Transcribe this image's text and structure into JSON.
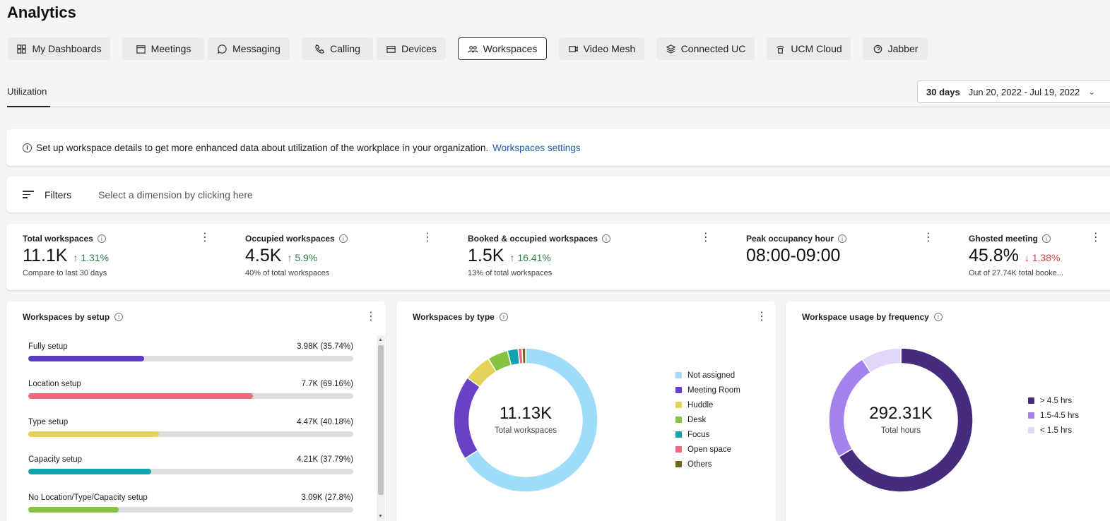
{
  "page_title": "Analytics",
  "nav_tabs": [
    {
      "label": "My Dashboards",
      "icon": "dashboard-icon"
    },
    {
      "label": "Meetings",
      "icon": "calendar-icon"
    },
    {
      "label": "Messaging",
      "icon": "chat-bubble-icon"
    },
    {
      "label": "Calling",
      "icon": "phone-icon"
    },
    {
      "label": "Devices",
      "icon": "device-icon"
    },
    {
      "label": "Workspaces",
      "icon": "people-icon",
      "active": true
    },
    {
      "label": "Video Mesh",
      "icon": "video-mesh-icon"
    },
    {
      "label": "Connected UC",
      "icon": "layers-icon"
    },
    {
      "label": "UCM Cloud",
      "icon": "cloud-phone-icon"
    },
    {
      "label": "Jabber",
      "icon": "jabber-icon"
    }
  ],
  "subtab": "Utilization",
  "date_range": {
    "days": "30 days",
    "range": "Jun 20, 2022 - Jul 19, 2022"
  },
  "banner": {
    "text": "Set up workspace details to get more enhanced data about utilization of the workplace in your organization.",
    "link": "Workspaces settings"
  },
  "filters": {
    "label": "Filters",
    "hint": "Select a dimension by clicking here"
  },
  "kpis": [
    {
      "title": "Total workspaces",
      "value": "11.1K",
      "delta": "↑ 1.31%",
      "dir": "up",
      "sub": "Compare to last 30 days"
    },
    {
      "title": "Occupied workspaces",
      "value": "4.5K",
      "delta": "↑ 5.9%",
      "dir": "up",
      "sub": "40% of total workspaces"
    },
    {
      "title": "Booked & occupied workspaces",
      "value": "1.5K",
      "delta": "↑ 16.41%",
      "dir": "up",
      "sub": "13% of total workspaces"
    },
    {
      "title": "Peak occupancy hour",
      "value": "08:00-09:00",
      "delta": "",
      "dir": "",
      "sub": ""
    },
    {
      "title": "Ghosted meeting",
      "value": "45.8%",
      "delta": "↓ 1.38%",
      "dir": "down",
      "sub": "Out of 27.74K total booke..."
    }
  ],
  "setup_card": {
    "title": "Workspaces by setup",
    "rows": [
      {
        "label": "Fully setup",
        "value": "3.98K (35.74%)",
        "pct": 35.74,
        "color": "#5b3ec0"
      },
      {
        "label": "Location setup",
        "value": "7.7K (69.16%)",
        "pct": 69.16,
        "color": "#ec6a80"
      },
      {
        "label": "Type setup",
        "value": "4.47K (40.18%)",
        "pct": 40.18,
        "color": "#e5d25a"
      },
      {
        "label": "Capacity setup",
        "value": "4.21K (37.79%)",
        "pct": 37.79,
        "color": "#12a3ad"
      },
      {
        "label": "No Location/Type/Capacity setup",
        "value": "3.09K (27.8%)",
        "pct": 27.8,
        "color": "#82c341"
      }
    ]
  },
  "type_card": {
    "title": "Workspaces by type",
    "center_value": "11.13K",
    "center_label": "Total workspaces"
  },
  "freq_card": {
    "title": "Workspace usage by frequency",
    "center_value": "292.31K",
    "center_label": "Total hours"
  },
  "chart_data": [
    {
      "type": "pie",
      "title": "Workspaces by type",
      "categories": [
        "Not assigned",
        "Meeting Room",
        "Huddle",
        "Desk",
        "Focus",
        "Open space",
        "Others"
      ],
      "values": [
        66,
        19,
        6.3,
        4.6,
        2.4,
        0.9,
        0.8
      ],
      "colors": [
        "#9edcfa",
        "#6a40c4",
        "#e5d25a",
        "#86c440",
        "#13a1b0",
        "#ec6a80",
        "#6f6a1a"
      ],
      "legend": "right"
    },
    {
      "type": "pie",
      "title": "Workspace usage by frequency",
      "categories": [
        "> 4.5 hrs",
        "1.5-4.5 hrs",
        "< 1.5 hrs"
      ],
      "values": [
        66.5,
        24.5,
        9
      ],
      "colors": [
        "#452c7e",
        "#a382ec",
        "#e2d6f9"
      ],
      "legend": "right"
    }
  ]
}
